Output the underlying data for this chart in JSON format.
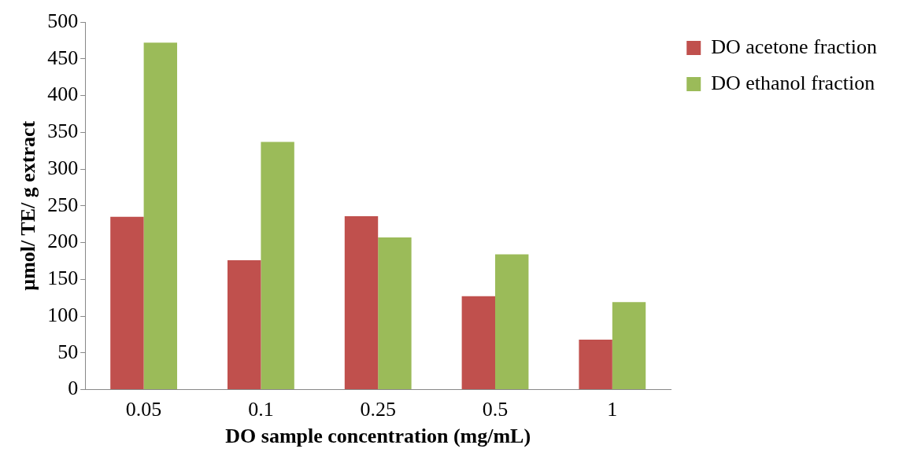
{
  "chart_data": {
    "type": "bar",
    "xlabel": "DO sample concentration (mg/mL)",
    "ylabel": "µmol/ TE/ g extract",
    "categories": [
      "0.05",
      "0.1",
      "0.25",
      "0.5",
      "1"
    ],
    "series": [
      {
        "name": "DO acetone fraction",
        "color": "#c0504d",
        "values": [
          235,
          176,
          236,
          127,
          68
        ]
      },
      {
        "name": "DO ethanol fraction",
        "color": "#9bbb59",
        "values": [
          472,
          337,
          207,
          184,
          119
        ]
      }
    ],
    "ylim": [
      0,
      500
    ],
    "yticks": [
      0,
      50,
      100,
      150,
      200,
      250,
      300,
      350,
      400,
      450,
      500
    ],
    "grid": false,
    "legend": "right"
  }
}
